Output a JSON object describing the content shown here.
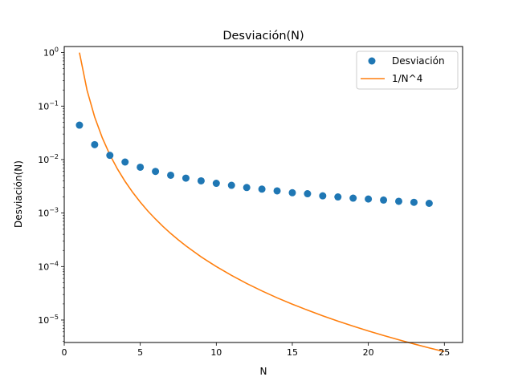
{
  "chart_data": {
    "type": "scatter",
    "title": "Desviación(N)",
    "xlabel": "N",
    "ylabel": "Desviación(N)",
    "xlim": [
      0,
      26.2
    ],
    "ylim": [
      3.8e-06,
      1.3
    ],
    "yscale": "log",
    "x_ticks": [
      0,
      5,
      10,
      15,
      20,
      25
    ],
    "x_tick_labels": [
      "0",
      "5",
      "10",
      "15",
      "20",
      "25"
    ],
    "y_ticks": [
      1e-05,
      0.0001,
      0.001,
      0.01,
      0.1,
      1
    ],
    "y_tick_labels": [
      {
        "base": "10",
        "exp": "−5"
      },
      {
        "base": "10",
        "exp": "−4"
      },
      {
        "base": "10",
        "exp": "−3"
      },
      {
        "base": "10",
        "exp": "−2"
      },
      {
        "base": "10",
        "exp": "−1"
      },
      {
        "base": "10",
        "exp": "0"
      }
    ],
    "grid": false,
    "legend_position": "top-right",
    "series": [
      {
        "name": "Desviación",
        "kind": "scatter",
        "color": "#1f77b4",
        "x": [
          1,
          2,
          3,
          4,
          5,
          6,
          7,
          8,
          9,
          10,
          11,
          12,
          13,
          14,
          15,
          16,
          17,
          18,
          19,
          20,
          21,
          22,
          23,
          24
        ],
        "y": [
          0.044,
          0.019,
          0.012,
          0.009,
          0.0072,
          0.006,
          0.0051,
          0.0045,
          0.004,
          0.0036,
          0.0033,
          0.003,
          0.0028,
          0.0026,
          0.0024,
          0.0023,
          0.0021,
          0.002,
          0.0019,
          0.00183,
          0.00175,
          0.00166,
          0.00159,
          0.00152
        ]
      },
      {
        "name": "1/N^4",
        "kind": "line",
        "color": "#ff7f0e",
        "x": [
          1,
          1.5,
          2,
          2.5,
          3,
          3.5,
          4,
          4.5,
          5,
          5.5,
          6,
          6.5,
          7,
          7.5,
          8,
          8.5,
          9,
          9.5,
          10,
          11,
          12,
          13,
          14,
          15,
          16,
          17,
          18,
          19,
          20,
          21,
          22,
          23,
          24,
          25
        ],
        "y": [
          1,
          0.1975,
          0.0625,
          0.0256,
          0.0123,
          0.00666,
          0.00391,
          0.00244,
          0.0016,
          0.00109,
          0.000772,
          0.00056,
          0.000416,
          0.000316,
          0.000244,
          0.000192,
          0.000152,
          0.000123,
          0.0001,
          6.83e-05,
          4.82e-05,
          3.5e-05,
          2.6e-05,
          1.98e-05,
          1.53e-05,
          1.2e-05,
          9.53e-06,
          7.67e-06,
          6.25e-06,
          5.14e-06,
          4.27e-06,
          3.57e-06,
          3.01e-06,
          2.56e-06
        ]
      }
    ]
  }
}
